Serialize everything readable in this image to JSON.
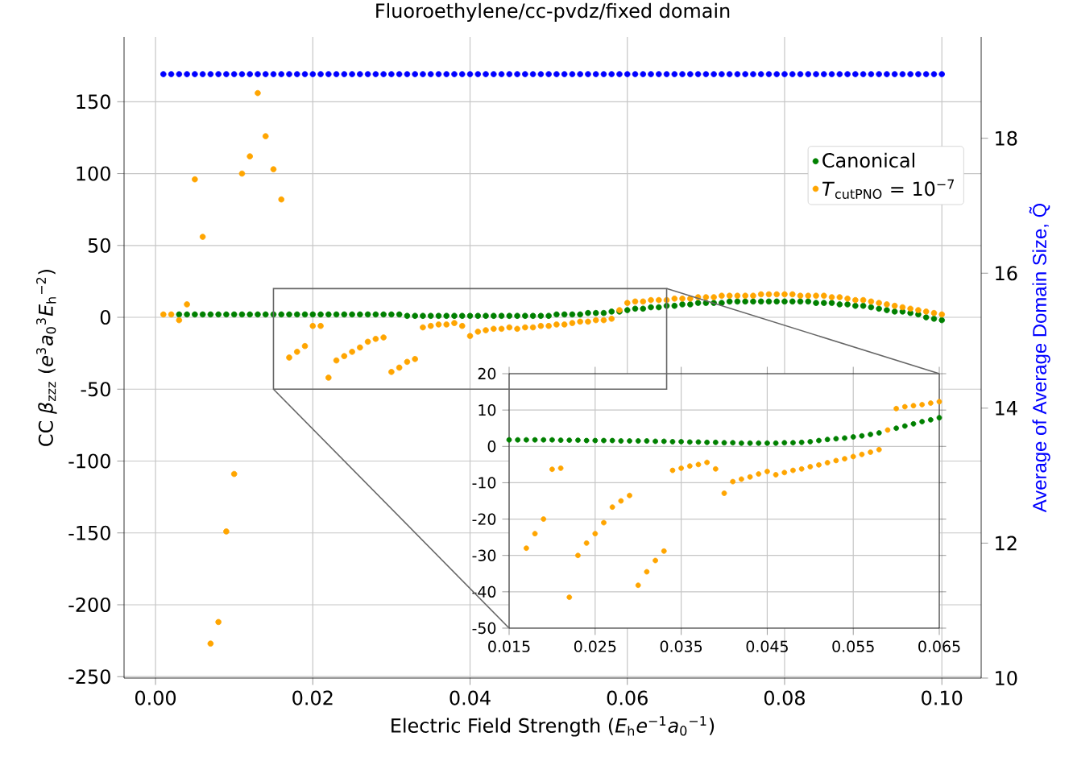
{
  "chart_data": [
    {
      "type": "scatter",
      "title": "Fluoroethylene/cc-pvdz/fixed domain",
      "xlabel": "Electric Field Strength (*E*$_{h}$*e*$^{−1}$*a*$_{0}$$^{−1}$)",
      "ylabel": "CC *β*$_{zzz}$ (*e*$^{3}$*a*$_{0}$$^{3}$*E*$_{h}$$^{−2}$)",
      "y2label": "Average of Average Domain Size, Q̃",
      "xlim": [
        -0.004,
        0.105
      ],
      "ylim": [
        -251,
        195
      ],
      "y2lim": [
        10,
        19.5
      ],
      "xticks": [
        {
          "value": 0,
          "label": "0.00"
        },
        0.02,
        0.04,
        0.06,
        0.08,
        {
          "value": 0.1,
          "label": "0.10"
        }
      ],
      "yticks": [
        -250,
        -200,
        -150,
        -100,
        -50,
        0,
        50,
        100,
        150
      ],
      "y2ticks": [
        10,
        12,
        14,
        16,
        18
      ],
      "grid": true,
      "legend": "top right",
      "marker": "circle",
      "x": [
        0.001,
        0.002,
        0.003,
        0.004,
        0.005,
        0.006,
        0.007,
        0.008,
        0.009,
        0.01,
        0.011,
        0.012,
        0.013,
        0.014,
        0.015,
        0.016,
        0.017,
        0.018,
        0.019,
        0.02,
        0.021,
        0.022,
        0.023,
        0.024,
        0.025,
        0.026,
        0.027,
        0.028,
        0.029,
        0.03,
        0.031,
        0.032,
        0.033,
        0.034,
        0.035,
        0.036,
        0.037,
        0.038,
        0.039,
        0.04,
        0.041,
        0.042,
        0.043,
        0.044,
        0.045,
        0.046,
        0.047,
        0.048,
        0.049,
        0.05,
        0.051,
        0.052,
        0.053,
        0.054,
        0.055,
        0.056,
        0.057,
        0.058,
        0.059,
        0.06,
        0.061,
        0.062,
        0.063,
        0.064,
        0.065,
        0.066,
        0.067,
        0.068,
        0.069,
        0.07,
        0.071,
        0.072,
        0.073,
        0.074,
        0.075,
        0.076,
        0.077,
        0.078,
        0.079,
        0.08,
        0.081,
        0.082,
        0.083,
        0.084,
        0.085,
        0.086,
        0.087,
        0.088,
        0.089,
        0.09,
        0.091,
        0.092,
        0.093,
        0.094,
        0.095,
        0.096,
        0.097,
        0.098,
        0.099,
        0.1
      ],
      "series": [
        {
          "axis": "y2",
          "color": "#0000ff",
          "values": [
            18.95,
            18.95,
            18.95,
            18.95,
            18.95,
            18.95,
            18.95,
            18.95,
            18.95,
            18.95,
            18.95,
            18.95,
            18.95,
            18.95,
            18.95,
            18.95,
            18.95,
            18.95,
            18.95,
            18.95,
            18.95,
            18.95,
            18.95,
            18.95,
            18.95,
            18.95,
            18.95,
            18.95,
            18.95,
            18.95,
            18.95,
            18.95,
            18.95,
            18.95,
            18.95,
            18.95,
            18.95,
            18.95,
            18.95,
            18.95,
            18.95,
            18.95,
            18.95,
            18.95,
            18.95,
            18.95,
            18.95,
            18.95,
            18.95,
            18.95,
            18.95,
            18.95,
            18.95,
            18.95,
            18.95,
            18.95,
            18.95,
            18.95,
            18.95,
            18.95,
            18.95,
            18.95,
            18.95,
            18.95,
            18.95,
            18.95,
            18.95,
            18.95,
            18.95,
            18.95,
            18.95,
            18.95,
            18.95,
            18.95,
            18.95,
            18.95,
            18.95,
            18.95,
            18.95,
            18.95,
            18.95,
            18.95,
            18.95,
            18.95,
            18.95,
            18.95,
            18.95,
            18.95,
            18.95,
            18.95,
            18.95,
            18.95,
            18.95,
            18.95,
            18.95,
            18.95,
            18.95,
            18.95,
            18.95,
            18.95
          ]
        },
        {
          "name": "Canonical",
          "color": "#008000",
          "values": [
            null,
            null,
            2,
            2,
            2,
            2,
            2,
            2,
            2,
            2,
            2,
            2,
            2,
            2,
            2,
            2,
            2,
            2,
            2,
            2,
            2,
            2,
            2,
            2,
            2,
            2,
            2,
            2,
            2,
            2,
            2,
            1,
            1,
            1,
            1,
            1,
            1,
            1,
            1,
            1,
            1,
            1,
            1,
            1,
            1,
            1,
            1,
            1,
            1,
            1,
            2,
            2,
            2,
            2,
            3,
            3,
            3,
            4,
            4,
            5,
            6,
            6,
            7,
            7,
            8,
            8,
            9,
            9,
            10,
            10,
            10,
            10,
            11,
            11,
            11,
            11,
            11,
            11,
            11,
            11,
            11,
            11,
            11,
            10,
            10,
            10,
            9,
            9,
            8,
            8,
            7,
            6,
            5,
            4,
            4,
            3,
            2,
            0,
            -1,
            -2
          ]
        },
        {
          "name": "*T*$_{cutPNO}$ = 10$^{−7}$",
          "color": "#ffa500",
          "values": [
            2,
            2,
            -2,
            9,
            96,
            56,
            -227,
            -212,
            -149,
            -109,
            100,
            112,
            156,
            126,
            103,
            82,
            -28,
            -24,
            -20,
            -6,
            -6,
            -42,
            -30,
            -27,
            -24,
            -21,
            -17,
            -15,
            -14,
            -38,
            -35,
            -31,
            -29,
            -7,
            -6,
            -5,
            -5,
            -4,
            -6,
            -13,
            -10,
            -9,
            -8,
            -8,
            -7,
            -8,
            -7,
            -7,
            -6,
            -6,
            -5,
            -5,
            -4,
            -3,
            -3,
            -2,
            -2,
            -1,
            5,
            10,
            11,
            11,
            12,
            12,
            12,
            13,
            13,
            13,
            14,
            14,
            14,
            15,
            15,
            15,
            15,
            15,
            16,
            16,
            16,
            16,
            16,
            15,
            15,
            15,
            15,
            14,
            14,
            13,
            12,
            12,
            11,
            10,
            9,
            8,
            7,
            6,
            5,
            4,
            3,
            2
          ]
        }
      ]
    },
    {
      "type": "scatter",
      "xlim": [
        0.015,
        0.065
      ],
      "ylim": [
        -50,
        20
      ],
      "xticks": [
        0.015,
        0.025,
        0.035,
        0.045,
        0.055,
        0.065
      ],
      "yticks": [
        -50,
        -40,
        -30,
        -20,
        -10,
        0,
        10,
        20
      ],
      "grid": true,
      "marker": "circle",
      "x": [
        0.015,
        0.016,
        0.017,
        0.018,
        0.019,
        0.02,
        0.021,
        0.022,
        0.023,
        0.024,
        0.025,
        0.026,
        0.027,
        0.028,
        0.029,
        0.03,
        0.031,
        0.032,
        0.033,
        0.034,
        0.035,
        0.036,
        0.037,
        0.038,
        0.039,
        0.04,
        0.041,
        0.042,
        0.043,
        0.044,
        0.045,
        0.046,
        0.047,
        0.048,
        0.049,
        0.05,
        0.051,
        0.052,
        0.053,
        0.054,
        0.055,
        0.056,
        0.057,
        0.058,
        0.059,
        0.06,
        0.061,
        0.062,
        0.063,
        0.064,
        0.065
      ],
      "series": [
        {
          "color": "#008000",
          "values": [
            1.8,
            1.8,
            1.8,
            1.8,
            1.8,
            1.8,
            1.7,
            1.7,
            1.7,
            1.6,
            1.6,
            1.6,
            1.6,
            1.5,
            1.5,
            1.5,
            1.5,
            1.4,
            1.4,
            1.3,
            1.3,
            1.2,
            1.2,
            1.1,
            1.1,
            1.0,
            1.0,
            0.9,
            0.9,
            0.9,
            0.9,
            0.9,
            1.0,
            1.0,
            1.1,
            1.3,
            1.6,
            1.9,
            2.1,
            2.3,
            2.6,
            2.9,
            3.3,
            3.7,
            null,
            5.0,
            5.6,
            6.2,
            6.8,
            7.3,
            7.9
          ]
        },
        {
          "color": "#ffa500",
          "values": [
            null,
            null,
            -28,
            -24,
            -20,
            -6.3,
            -6,
            -41.5,
            -30,
            -26.6,
            -24,
            -21,
            -16.7,
            -15,
            -13.5,
            -38.2,
            -34.5,
            -31.4,
            -28.8,
            -6.6,
            -6,
            -5.4,
            -5,
            -4.4,
            -6.2,
            -12.9,
            -9.7,
            -9,
            -8.4,
            -7.6,
            -6.9,
            -7.8,
            -7.2,
            -6.6,
            -6.2,
            -5.6,
            -5.1,
            -4.5,
            -3.9,
            -3.4,
            -2.8,
            -2.2,
            -1.6,
            -0.9,
            4.5,
            10.4,
            10.9,
            11.2,
            11.5,
            11.9,
            12.3
          ]
        }
      ]
    }
  ]
}
